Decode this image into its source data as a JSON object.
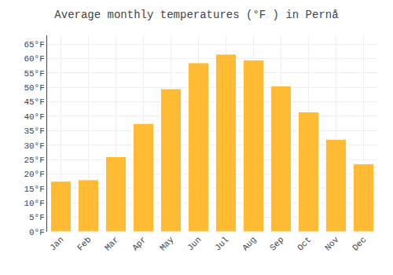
{
  "chart_data": {
    "type": "bar",
    "title": "Average monthly temperatures (°F ) in Pernå",
    "categories": [
      "Jan",
      "Feb",
      "Mar",
      "Apr",
      "May",
      "Jun",
      "Jul",
      "Aug",
      "Sep",
      "Oct",
      "Nov",
      "Dec"
    ],
    "values": [
      17.5,
      18,
      26,
      37.5,
      49.5,
      58.5,
      61.5,
      59.5,
      50.5,
      41.5,
      32,
      23.5
    ],
    "color": "#FFBB33",
    "ylim": [
      0,
      68
    ],
    "yticks": [
      {
        "value": 0,
        "label": "0°F"
      },
      {
        "value": 5,
        "label": "5°F"
      },
      {
        "value": 10,
        "label": "10°F"
      },
      {
        "value": 15,
        "label": "15°F"
      },
      {
        "value": 20,
        "label": "20°F"
      },
      {
        "value": 25,
        "label": "25°F"
      },
      {
        "value": 30,
        "label": "30°F"
      },
      {
        "value": 35,
        "label": "35°F"
      },
      {
        "value": 40,
        "label": "40°F"
      },
      {
        "value": 45,
        "label": "45°F"
      },
      {
        "value": 50,
        "label": "50°F"
      },
      {
        "value": 55,
        "label": "55°F"
      },
      {
        "value": 60,
        "label": "60°F"
      },
      {
        "value": 65,
        "label": "65°F"
      }
    ],
    "grid": true
  }
}
